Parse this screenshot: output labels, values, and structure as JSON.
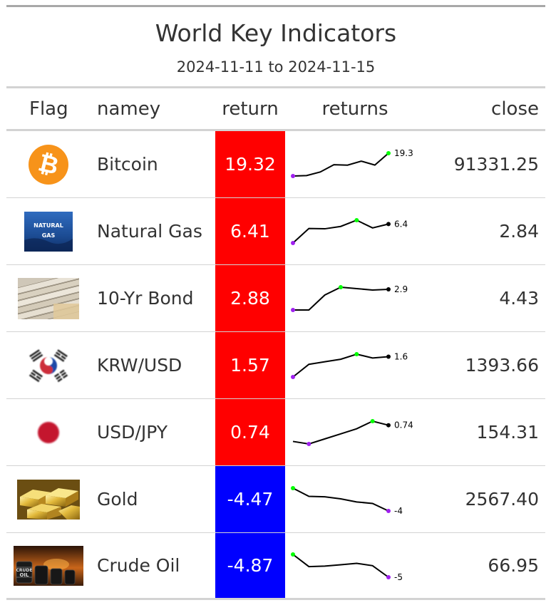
{
  "title": "World Key Indicators",
  "subtitle": "2024-11-11 to 2024-11-15",
  "columns": {
    "flag": "Flag",
    "name": "namey",
    "return": "return",
    "returns": "returns",
    "close": "close"
  },
  "colors": {
    "positive": "#ff0000",
    "negative": "#0000ff",
    "spark_line": "#000000",
    "spark_min": "#a020f0",
    "spark_max": "#00ff00"
  },
  "rows": [
    {
      "icon": "bitcoin-logo-icon",
      "name": "Bitcoin",
      "return": "19.32",
      "close": "91331.25",
      "spark_label": "19.3",
      "spark": [
        0,
        0.4,
        3.4,
        9.6,
        9.2,
        12.6,
        9.3,
        19.3
      ]
    },
    {
      "icon": "natural-gas-icon",
      "icon_text_1": "NATURAL",
      "icon_text_2": "GAS",
      "name": "Natural Gas",
      "return": "6.41",
      "close": "2.84",
      "spark_label": "6.4",
      "spark": [
        0,
        4.9,
        4.8,
        5.6,
        7.7,
        5.1,
        6.4
      ]
    },
    {
      "icon": "bond-certificates-icon",
      "name": "10-Yr Bond",
      "return": "2.88",
      "close": "4.43",
      "spark_label": "2.9",
      "spark": [
        0,
        0,
        2.1,
        3.2,
        3.0,
        2.8,
        2.9
      ]
    },
    {
      "icon": "south-korea-flag-icon",
      "name": "KRW/USD",
      "return": "1.57",
      "close": "1393.66",
      "spark_label": "1.6",
      "spark": [
        0,
        1.0,
        1.2,
        1.4,
        1.8,
        1.5,
        1.6
      ]
    },
    {
      "icon": "japan-flag-icon",
      "name": "USD/JPY",
      "return": "0.74",
      "close": "154.31",
      "spark_label": "0.74",
      "spark": [
        0.1,
        0,
        0.2,
        0.4,
        0.6,
        0.9,
        0.74
      ]
    },
    {
      "icon": "gold-bars-icon",
      "name": "Gold",
      "return": "-4.47",
      "close": "2567.40",
      "spark_label": "-4",
      "spark": [
        0,
        -1.6,
        -1.7,
        -2.1,
        -2.7,
        -3.0,
        -4.47
      ]
    },
    {
      "icon": "crude-oil-barrels-icon",
      "icon_text_1": "CRUDE",
      "icon_text_2": "OIL",
      "name": "Crude Oil",
      "return": "-4.87",
      "close": "66.95",
      "spark_label": "-5",
      "spark": [
        0,
        -2.6,
        -2.5,
        -2.2,
        -1.9,
        -2.4,
        -4.87
      ]
    }
  ]
}
